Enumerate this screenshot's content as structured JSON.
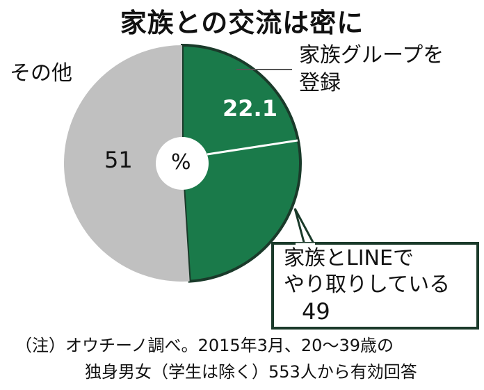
{
  "title": "家族との交流は密に",
  "chart_data": {
    "type": "pie",
    "unit": "%",
    "slices": [
      {
        "label": "家族とLINEでやり取りしている",
        "value": 49,
        "color": "#1a7a4a"
      },
      {
        "label": "その他",
        "value": 51,
        "color": "#c0c0c0"
      }
    ],
    "sub_slice": {
      "label": "家族グループを登録",
      "value": 22.1,
      "parent": "家族とLINEでやり取りしている"
    }
  },
  "labels": {
    "other": "その他",
    "other_value": "51",
    "center": "%",
    "group_line1": "家族グループを",
    "group_line2": "登録",
    "group_value": "22.1",
    "line_line1": "家族とLINEで",
    "line_line2": "やり取りしている",
    "line_value": "49"
  },
  "note": {
    "line1": "（注）オウチーノ調べ。2015年3月、20～39歳の",
    "line2": "独身男女（学生は除く）553人から有効回答"
  }
}
